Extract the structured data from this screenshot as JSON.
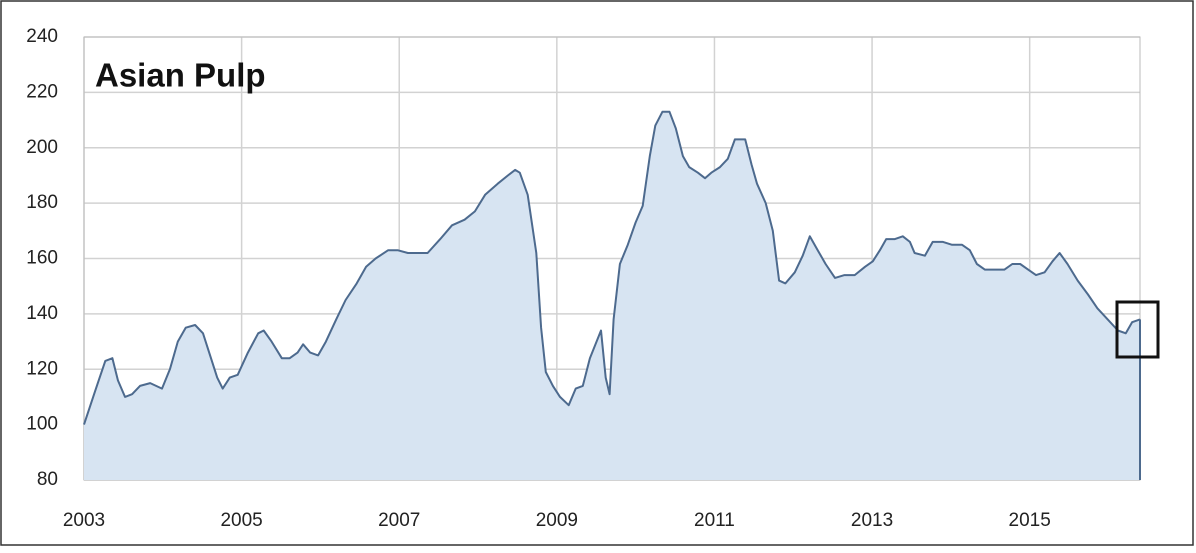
{
  "chart_data": {
    "type": "area",
    "title": "Asian Pulp",
    "x": [
      2003.0,
      2003.14,
      2003.27,
      2003.36,
      2003.43,
      2003.52,
      2003.61,
      2003.71,
      2003.84,
      2003.99,
      2004.09,
      2004.19,
      2004.29,
      2004.41,
      2004.51,
      2004.6,
      2004.69,
      2004.76,
      2004.85,
      2004.95,
      2005.08,
      2005.21,
      2005.28,
      2005.38,
      2005.51,
      2005.61,
      2005.71,
      2005.78,
      2005.87,
      2005.97,
      2006.07,
      2006.2,
      2006.32,
      2006.46,
      2006.58,
      2006.7,
      2006.86,
      2006.98,
      2007.11,
      2007.26,
      2007.36,
      2007.52,
      2007.67,
      2007.83,
      2007.96,
      2008.09,
      2008.25,
      2008.38,
      2008.47,
      2008.53,
      2008.63,
      2008.74,
      2008.8,
      2008.86,
      2008.95,
      2009.04,
      2009.15,
      2009.24,
      2009.33,
      2009.42,
      2009.49,
      2009.56,
      2009.62,
      2009.67,
      2009.72,
      2009.8,
      2009.9,
      2010.0,
      2010.09,
      2010.18,
      2010.25,
      2010.34,
      2010.43,
      2010.51,
      2010.6,
      2010.68,
      2010.79,
      2010.88,
      2010.96,
      2011.07,
      2011.17,
      2011.26,
      2011.39,
      2011.47,
      2011.54,
      2011.65,
      2011.74,
      2011.82,
      2011.9,
      2012.02,
      2012.12,
      2012.21,
      2012.31,
      2012.41,
      2012.53,
      2012.65,
      2012.78,
      2012.91,
      2013.01,
      2013.1,
      2013.18,
      2013.29,
      2013.39,
      2013.48,
      2013.54,
      2013.67,
      2013.77,
      2013.9,
      2014.01,
      2014.14,
      2014.24,
      2014.33,
      2014.43,
      2014.53,
      2014.68,
      2014.78,
      2014.88,
      2014.98,
      2015.08,
      2015.19,
      2015.29,
      2015.38,
      2015.48,
      2015.61,
      2015.74,
      2015.86,
      2015.99,
      2016.12,
      2016.22,
      2016.3,
      2016.4
    ],
    "values": [
      100,
      112,
      123,
      124,
      116,
      110,
      111,
      114,
      115,
      113,
      120,
      130,
      135,
      136,
      133,
      125,
      117,
      113,
      117,
      118,
      126,
      133,
      134,
      130,
      124,
      124,
      126,
      129,
      126,
      125,
      130,
      138,
      145,
      151,
      157,
      160,
      163,
      163,
      162,
      162,
      162,
      167,
      172,
      174,
      177,
      183,
      187,
      190,
      192,
      191,
      183,
      162,
      135,
      119,
      114,
      110,
      107,
      113,
      114,
      124,
      129,
      134,
      117,
      111,
      138,
      158,
      165,
      173,
      179,
      197,
      208,
      213,
      213,
      207,
      197,
      193,
      191,
      189,
      191,
      193,
      196,
      203,
      203,
      194,
      187,
      180,
      170,
      152,
      151,
      155,
      161,
      168,
      163,
      158,
      153,
      154,
      154,
      157,
      159,
      163,
      167,
      167,
      168,
      166,
      162,
      161,
      166,
      166,
      165,
      165,
      163,
      158,
      156,
      156,
      156,
      158,
      158,
      156,
      154,
      155,
      159,
      162,
      158,
      152,
      147,
      142,
      138,
      134,
      133,
      137,
      138
    ],
    "color": "#4d6a8e",
    "fill_color": "#d7e4f2",
    "xlim": [
      2003,
      2016.4
    ],
    "ylim": [
      80,
      240
    ],
    "xticks": [
      2003,
      2005,
      2007,
      2009,
      2011,
      2013,
      2015
    ],
    "yticks": [
      80,
      100,
      120,
      140,
      160,
      180,
      200,
      220,
      240
    ],
    "grid": true
  }
}
